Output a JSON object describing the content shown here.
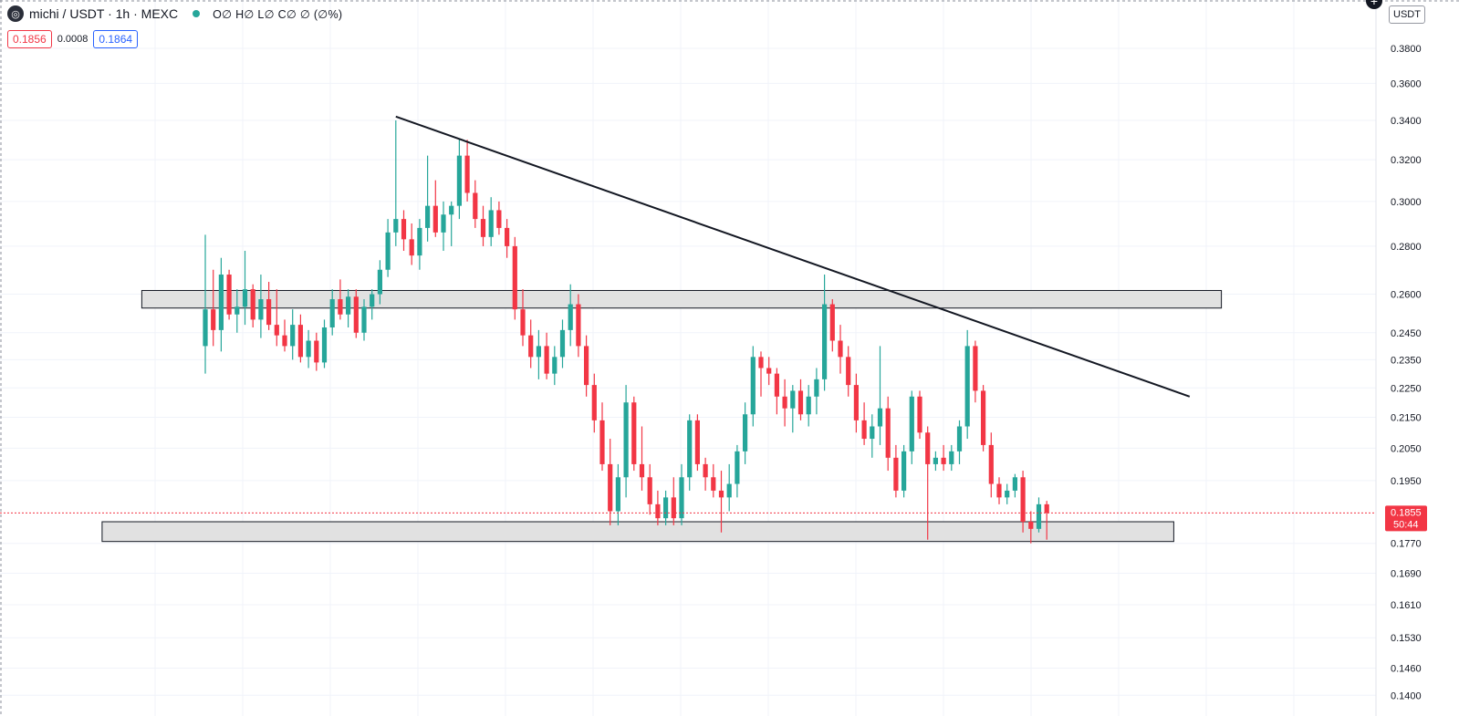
{
  "header": {
    "symbol": "michi / USDT · 1h · MEXC",
    "logo_glyph": "◎",
    "ohlc": "O∅ H∅ L∅ C∅ ∅ (∅%)",
    "sell_price": "0.1856",
    "spread": "0.0008",
    "buy_price": "0.1864",
    "currency": "USDT",
    "add_icon": "plus-icon"
  },
  "colors": {
    "up": "#26a69a",
    "down": "#f23645",
    "accent": "#2962ff"
  },
  "price_label": {
    "value": "0.1855",
    "countdown": "50:44"
  },
  "chart_data": {
    "type": "candlestick",
    "y_scale": "log",
    "ylim": [
      0.139,
      0.4
    ],
    "yticks": [
      0.38,
      0.36,
      0.34,
      0.32,
      0.3,
      0.28,
      0.26,
      0.245,
      0.235,
      0.225,
      0.215,
      0.205,
      0.195,
      0.1855,
      0.177,
      0.169,
      0.161,
      0.153,
      0.146,
      0.14
    ],
    "ytick_labels": [
      "0.3800",
      "0.3600",
      "0.3400",
      "0.3200",
      "0.3000",
      "0.2800",
      "0.2600",
      "0.2450",
      "0.2350",
      "0.2250",
      "0.2150",
      "0.2050",
      "0.1950",
      "0.1855",
      "0.1770",
      "0.1690",
      "0.1610",
      "0.1530",
      "0.1460",
      "0.1400"
    ],
    "grid": true,
    "candles": [
      [
        0.24,
        0.285,
        0.23,
        0.254
      ],
      [
        0.254,
        0.27,
        0.24,
        0.246
      ],
      [
        0.246,
        0.275,
        0.238,
        0.268
      ],
      [
        0.268,
        0.27,
        0.25,
        0.252
      ],
      [
        0.252,
        0.262,
        0.245,
        0.255
      ],
      [
        0.255,
        0.278,
        0.248,
        0.262
      ],
      [
        0.262,
        0.264,
        0.247,
        0.25
      ],
      [
        0.25,
        0.268,
        0.243,
        0.258
      ],
      [
        0.258,
        0.265,
        0.246,
        0.248
      ],
      [
        0.248,
        0.262,
        0.24,
        0.244
      ],
      [
        0.244,
        0.25,
        0.238,
        0.24
      ],
      [
        0.24,
        0.254,
        0.235,
        0.248
      ],
      [
        0.248,
        0.252,
        0.234,
        0.236
      ],
      [
        0.236,
        0.246,
        0.232,
        0.242
      ],
      [
        0.242,
        0.245,
        0.231,
        0.234
      ],
      [
        0.234,
        0.25,
        0.232,
        0.247
      ],
      [
        0.247,
        0.262,
        0.244,
        0.258
      ],
      [
        0.258,
        0.266,
        0.25,
        0.252
      ],
      [
        0.252,
        0.262,
        0.247,
        0.259
      ],
      [
        0.259,
        0.262,
        0.243,
        0.245
      ],
      [
        0.245,
        0.258,
        0.242,
        0.255
      ],
      [
        0.255,
        0.262,
        0.25,
        0.26
      ],
      [
        0.26,
        0.274,
        0.256,
        0.27
      ],
      [
        0.27,
        0.292,
        0.267,
        0.286
      ],
      [
        0.286,
        0.34,
        0.28,
        0.292
      ],
      [
        0.292,
        0.296,
        0.278,
        0.283
      ],
      [
        0.283,
        0.29,
        0.272,
        0.276
      ],
      [
        0.276,
        0.292,
        0.27,
        0.288
      ],
      [
        0.288,
        0.322,
        0.282,
        0.298
      ],
      [
        0.298,
        0.31,
        0.284,
        0.286
      ],
      [
        0.286,
        0.3,
        0.278,
        0.294
      ],
      [
        0.294,
        0.3,
        0.28,
        0.298
      ],
      [
        0.298,
        0.33,
        0.292,
        0.322
      ],
      [
        0.322,
        0.33,
        0.3,
        0.304
      ],
      [
        0.304,
        0.31,
        0.288,
        0.292
      ],
      [
        0.292,
        0.298,
        0.28,
        0.284
      ],
      [
        0.284,
        0.302,
        0.28,
        0.296
      ],
      [
        0.296,
        0.3,
        0.285,
        0.288
      ],
      [
        0.288,
        0.292,
        0.275,
        0.28
      ],
      [
        0.28,
        0.284,
        0.25,
        0.254
      ],
      [
        0.254,
        0.262,
        0.24,
        0.244
      ],
      [
        0.244,
        0.25,
        0.232,
        0.236
      ],
      [
        0.236,
        0.246,
        0.228,
        0.24
      ],
      [
        0.24,
        0.245,
        0.228,
        0.23
      ],
      [
        0.23,
        0.24,
        0.226,
        0.236
      ],
      [
        0.236,
        0.25,
        0.232,
        0.246
      ],
      [
        0.246,
        0.264,
        0.24,
        0.256
      ],
      [
        0.256,
        0.26,
        0.236,
        0.24
      ],
      [
        0.24,
        0.244,
        0.222,
        0.226
      ],
      [
        0.226,
        0.23,
        0.21,
        0.214
      ],
      [
        0.214,
        0.22,
        0.198,
        0.2
      ],
      [
        0.2,
        0.208,
        0.182,
        0.186
      ],
      [
        0.186,
        0.2,
        0.182,
        0.196
      ],
      [
        0.196,
        0.226,
        0.19,
        0.22
      ],
      [
        0.22,
        0.222,
        0.198,
        0.2
      ],
      [
        0.2,
        0.212,
        0.192,
        0.196
      ],
      [
        0.196,
        0.2,
        0.185,
        0.188
      ],
      [
        0.188,
        0.192,
        0.182,
        0.184
      ],
      [
        0.184,
        0.192,
        0.182,
        0.19
      ],
      [
        0.19,
        0.196,
        0.182,
        0.184
      ],
      [
        0.184,
        0.2,
        0.182,
        0.196
      ],
      [
        0.196,
        0.216,
        0.192,
        0.214
      ],
      [
        0.214,
        0.216,
        0.198,
        0.2
      ],
      [
        0.2,
        0.202,
        0.192,
        0.196
      ],
      [
        0.196,
        0.2,
        0.19,
        0.192
      ],
      [
        0.192,
        0.198,
        0.18,
        0.19
      ],
      [
        0.19,
        0.2,
        0.186,
        0.194
      ],
      [
        0.194,
        0.206,
        0.19,
        0.204
      ],
      [
        0.204,
        0.22,
        0.2,
        0.216
      ],
      [
        0.216,
        0.24,
        0.212,
        0.236
      ],
      [
        0.236,
        0.238,
        0.222,
        0.232
      ],
      [
        0.232,
        0.236,
        0.226,
        0.23
      ],
      [
        0.23,
        0.232,
        0.216,
        0.222
      ],
      [
        0.222,
        0.228,
        0.212,
        0.218
      ],
      [
        0.218,
        0.226,
        0.21,
        0.224
      ],
      [
        0.224,
        0.228,
        0.214,
        0.216
      ],
      [
        0.216,
        0.226,
        0.212,
        0.222
      ],
      [
        0.222,
        0.232,
        0.216,
        0.228
      ],
      [
        0.228,
        0.268,
        0.224,
        0.256
      ],
      [
        0.256,
        0.258,
        0.238,
        0.242
      ],
      [
        0.242,
        0.248,
        0.23,
        0.236
      ],
      [
        0.236,
        0.24,
        0.222,
        0.226
      ],
      [
        0.226,
        0.23,
        0.21,
        0.214
      ],
      [
        0.214,
        0.22,
        0.206,
        0.208
      ],
      [
        0.208,
        0.216,
        0.202,
        0.212
      ],
      [
        0.212,
        0.24,
        0.206,
        0.218
      ],
      [
        0.218,
        0.222,
        0.198,
        0.202
      ],
      [
        0.202,
        0.206,
        0.19,
        0.192
      ],
      [
        0.192,
        0.206,
        0.19,
        0.204
      ],
      [
        0.204,
        0.224,
        0.2,
        0.222
      ],
      [
        0.222,
        0.224,
        0.208,
        0.21
      ],
      [
        0.21,
        0.212,
        0.178,
        0.2
      ],
      [
        0.2,
        0.204,
        0.198,
        0.202
      ],
      [
        0.202,
        0.206,
        0.198,
        0.2
      ],
      [
        0.2,
        0.206,
        0.198,
        0.204
      ],
      [
        0.204,
        0.214,
        0.2,
        0.212
      ],
      [
        0.212,
        0.246,
        0.208,
        0.24
      ],
      [
        0.24,
        0.242,
        0.22,
        0.224
      ],
      [
        0.224,
        0.226,
        0.204,
        0.206
      ],
      [
        0.206,
        0.21,
        0.19,
        0.194
      ],
      [
        0.194,
        0.196,
        0.188,
        0.19
      ],
      [
        0.19,
        0.194,
        0.188,
        0.192
      ],
      [
        0.192,
        0.197,
        0.19,
        0.196
      ],
      [
        0.196,
        0.198,
        0.18,
        0.183
      ],
      [
        0.183,
        0.186,
        0.177,
        0.181
      ],
      [
        0.181,
        0.19,
        0.18,
        0.188
      ],
      [
        0.188,
        0.189,
        0.178,
        0.1855
      ]
    ],
    "annotations": {
      "trendline": {
        "from": [
          24,
          0.342
        ],
        "to": [
          124,
          0.222
        ]
      },
      "resistance_zone": {
        "from_candle": -8,
        "to_candle": 128,
        "low": 0.2545,
        "high": 0.2615
      },
      "support_zone": {
        "from_candle": -13,
        "to_candle": 122,
        "low": 0.1775,
        "high": 0.183
      },
      "current_price_line": 0.1855
    }
  }
}
